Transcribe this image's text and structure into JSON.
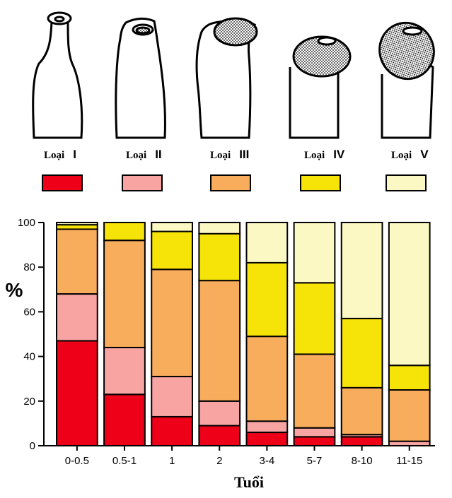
{
  "legend": {
    "items": [
      {
        "label": "Loại",
        "numeral": "I",
        "color": "#ee0019"
      },
      {
        "label": "Loại",
        "numeral": "II",
        "color": "#f8a4a3"
      },
      {
        "label": "Loại",
        "numeral": "III",
        "color": "#f8ad5c"
      },
      {
        "label": "Loại",
        "numeral": "IV",
        "color": "#f6e308"
      },
      {
        "label": "Loại",
        "numeral": "V",
        "color": "#fcf8c4"
      }
    ]
  },
  "chart_data": {
    "type": "bar",
    "stacked": true,
    "categories": [
      "0-0.5",
      "0.5-1",
      "1",
      "2",
      "3-4",
      "5-7",
      "8-10",
      "11-15"
    ],
    "series": [
      {
        "name": "Loại I",
        "color": "#ee0019",
        "values": [
          47,
          23,
          13,
          9,
          6,
          4,
          4,
          0
        ]
      },
      {
        "name": "Loại II",
        "color": "#f8a4a3",
        "values": [
          21,
          21,
          18,
          11,
          5,
          4,
          1,
          2
        ]
      },
      {
        "name": "Loại III",
        "color": "#f8ad5c",
        "values": [
          29,
          48,
          48,
          54,
          38,
          33,
          21,
          23
        ]
      },
      {
        "name": "Loại IV",
        "color": "#f6e308",
        "values": [
          2,
          8,
          17,
          21,
          33,
          32,
          31,
          11
        ]
      },
      {
        "name": "Loại V",
        "color": "#fcf8c4",
        "values": [
          1,
          0,
          4,
          5,
          18,
          27,
          43,
          64
        ]
      }
    ],
    "ylabel": "%",
    "xlabel": "Tuổi",
    "ylim": [
      0,
      100
    ],
    "yticks": [
      0,
      20,
      40,
      60,
      80,
      100
    ],
    "legend_position": "top",
    "grid": false
  }
}
